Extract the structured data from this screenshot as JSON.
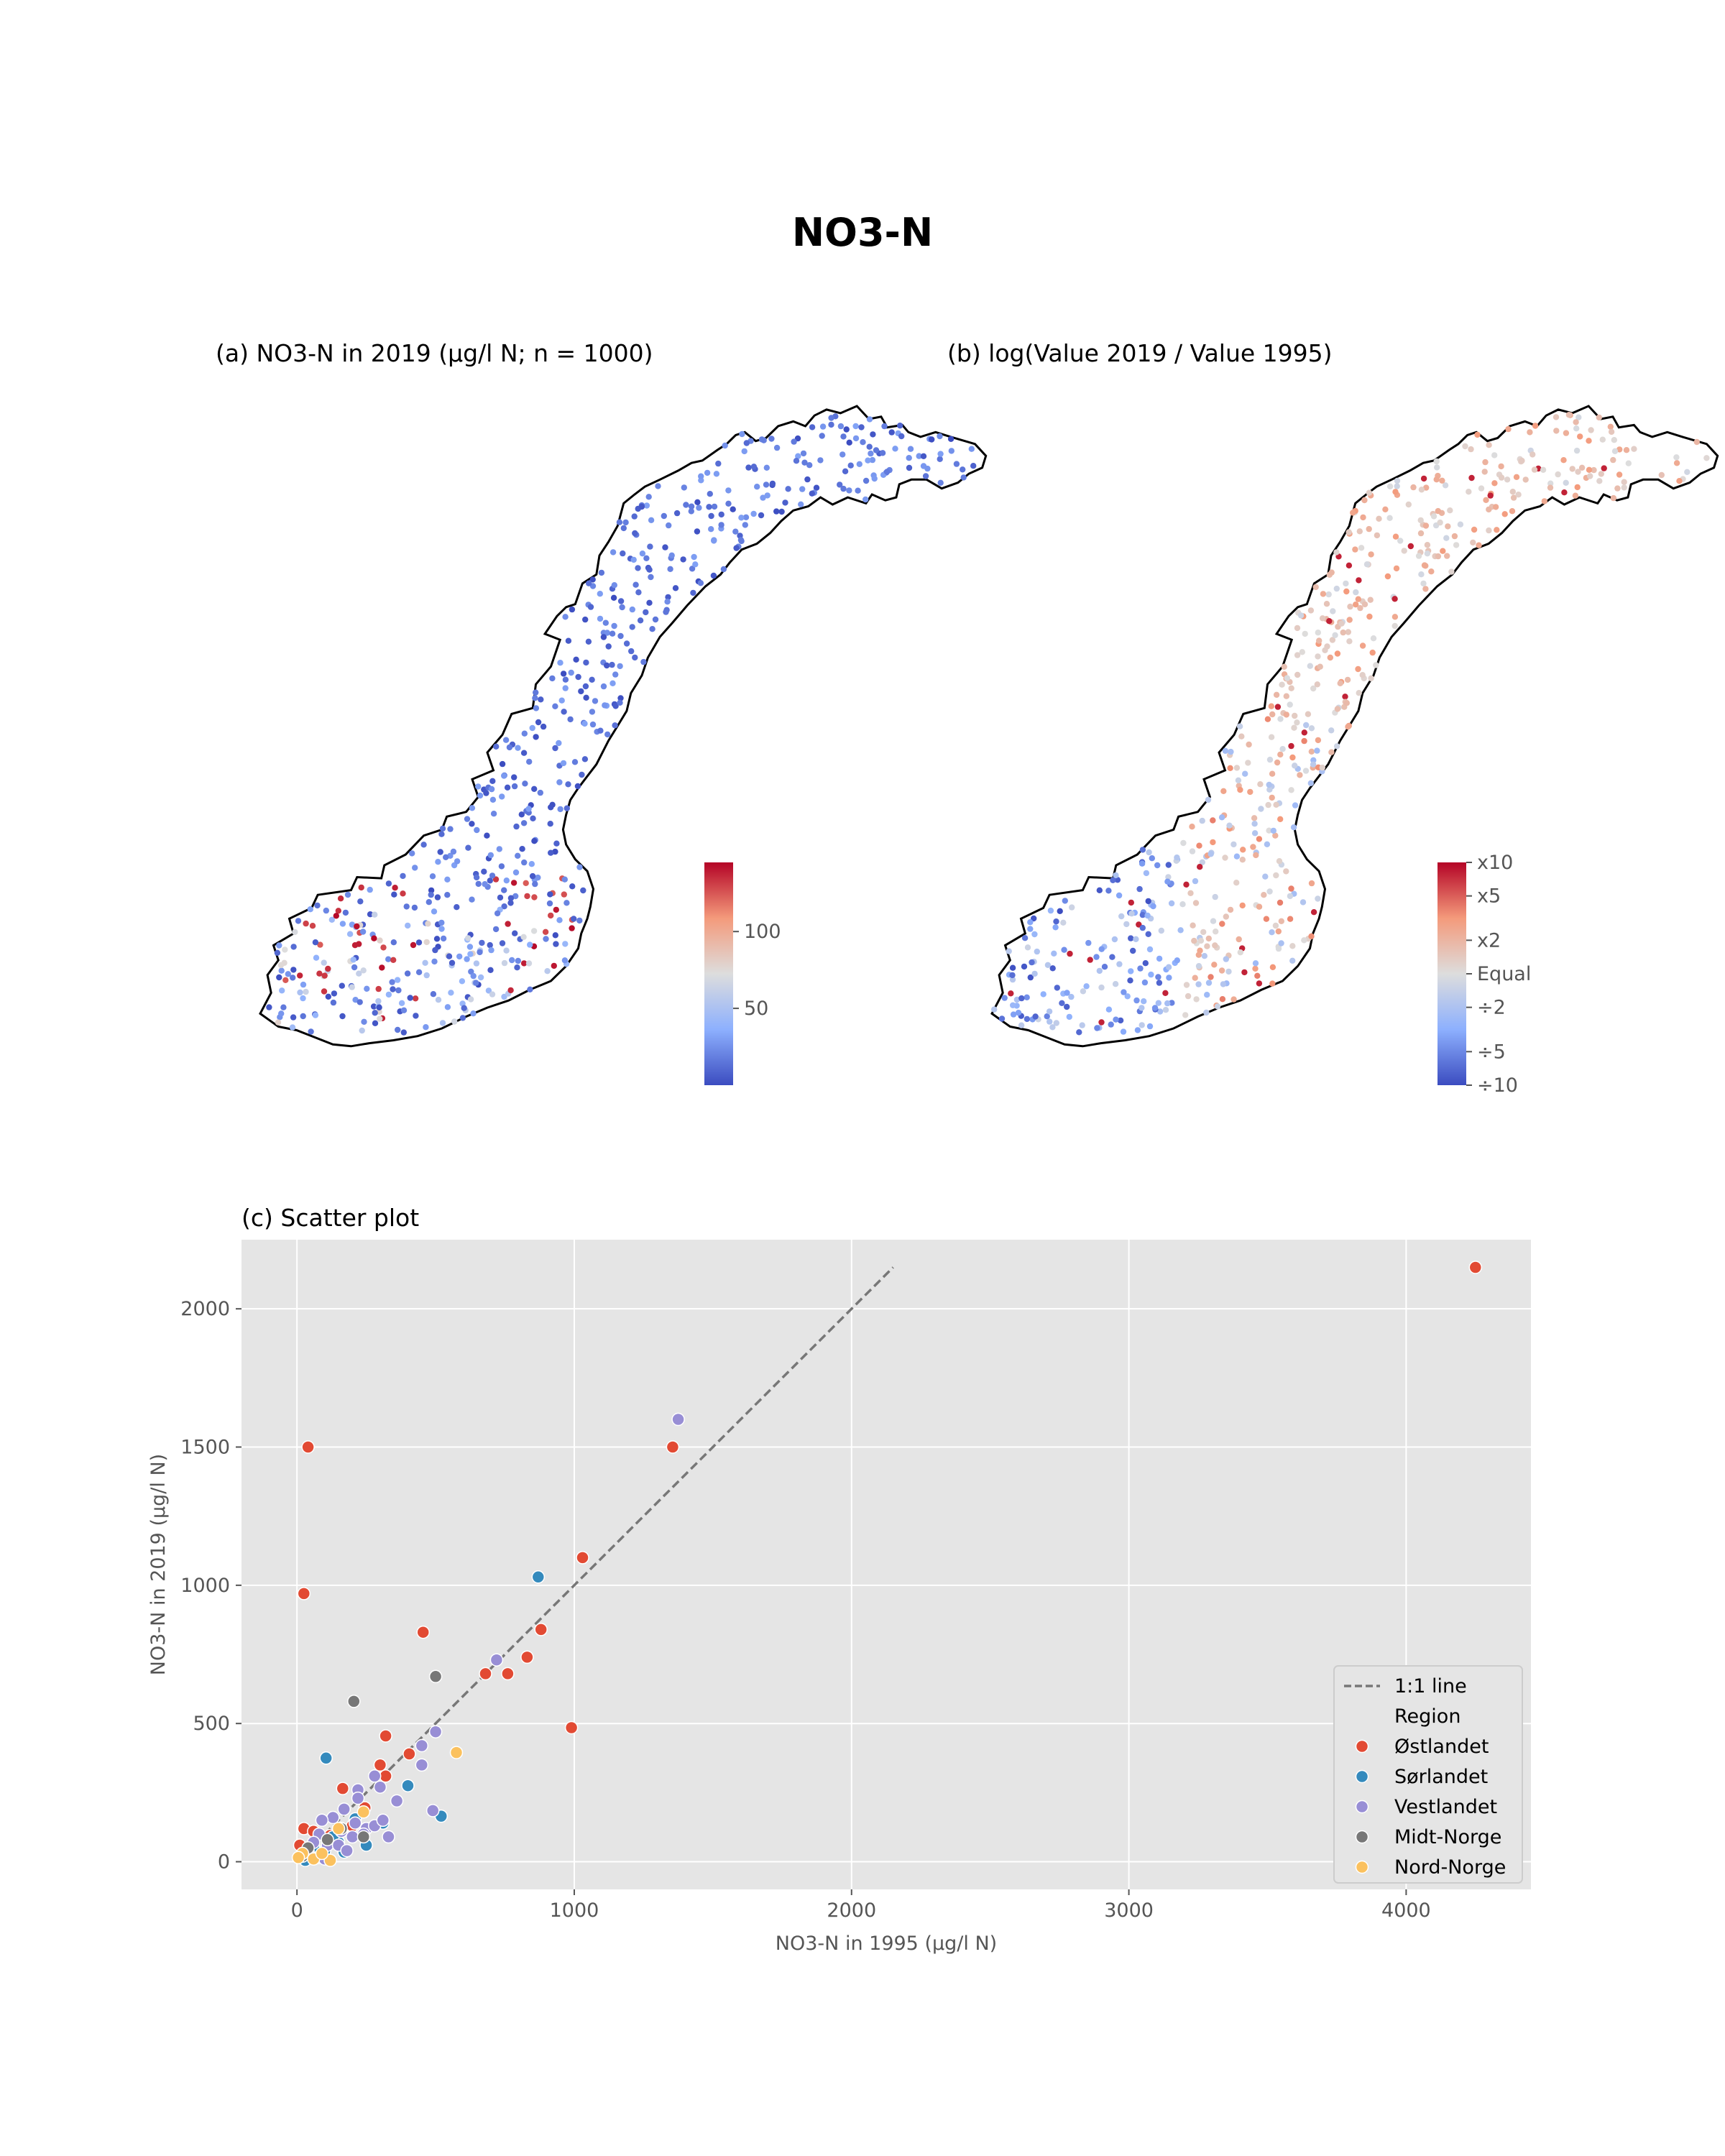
{
  "figure": {
    "title": "NO3-N"
  },
  "colors": {
    "ostlandet": "#e24a33",
    "sorlandet": "#348abd",
    "vestlandet": "#988ed5",
    "midt_norge": "#777777",
    "nord_norge": "#fbc15e",
    "cmap_low": "#3b4cc0",
    "cmap_mid": "#dddddd",
    "cmap_high": "#b40426",
    "plot_bg": "#e5e5e5",
    "grid": "#ffffff"
  },
  "chart_data": [
    {
      "panel": "a",
      "type": "scatter",
      "title": "(a) NO3-N in 2019 (µg/l N; n = 1000)",
      "map": "Norway",
      "colorbar": {
        "ticks": [
          "50",
          "100"
        ],
        "tick_values": [
          50,
          100
        ],
        "range": [
          0,
          145
        ],
        "cmap": "coolwarm"
      },
      "point_value_distribution": "mostly low (blue), high values (red) concentrated in the south-west and south-east coast",
      "n": 1000
    },
    {
      "panel": "b",
      "type": "scatter",
      "title": "(b) log(Value 2019 / Value 1995)",
      "map": "Norway",
      "colorbar": {
        "ticks": [
          "x10",
          "x5",
          "x2",
          "Equal",
          "÷2",
          "÷5",
          "÷10"
        ],
        "tick_values": [
          10,
          5,
          2,
          1,
          0.5,
          0.2,
          0.1
        ],
        "scale": "log",
        "cmap": "coolwarm"
      },
      "point_value_distribution": "decreases (blue) in the west, increases (red) in the east and north"
    },
    {
      "panel": "c",
      "type": "scatter",
      "title": "(c) Scatter plot",
      "xlabel": "NO3-N in 1995 (µg/l N)",
      "ylabel": "NO3-N in 2019 (µg/l N)",
      "xlim": [
        -200,
        4450
      ],
      "ylim": [
        -100,
        2250
      ],
      "xticks": [
        0,
        1000,
        2000,
        3000,
        4000
      ],
      "yticks": [
        0,
        500,
        1000,
        1500,
        2000
      ],
      "grid": true,
      "legend": {
        "position": "lower-right",
        "line_label": "1:1 line",
        "title": "Region"
      },
      "reference_line": {
        "label": "1:1 line",
        "x": [
          0,
          2150
        ],
        "y": [
          0,
          2150
        ],
        "style": "dashed"
      },
      "series": [
        {
          "name": "Østlandet",
          "color": "#e24a33",
          "points": [
            [
              4250,
              2150
            ],
            [
              40,
              1500
            ],
            [
              1355,
              1500
            ],
            [
              25,
              970
            ],
            [
              1030,
              1100
            ],
            [
              455,
              830
            ],
            [
              880,
              840
            ],
            [
              830,
              740
            ],
            [
              760,
              680
            ],
            [
              680,
              680
            ],
            [
              990,
              485
            ],
            [
              320,
              455
            ],
            [
              405,
              390
            ],
            [
              300,
              350
            ],
            [
              165,
              265
            ],
            [
              245,
              195
            ],
            [
              320,
              310
            ],
            [
              25,
              120
            ],
            [
              60,
              110
            ],
            [
              120,
              95
            ],
            [
              10,
              60
            ],
            [
              80,
              30
            ],
            [
              200,
              130
            ]
          ]
        },
        {
          "name": "Sørlandet",
          "color": "#348abd",
          "points": [
            [
              870,
              1030
            ],
            [
              105,
              375
            ],
            [
              400,
              275
            ],
            [
              520,
              165
            ],
            [
              310,
              140
            ],
            [
              210,
              155
            ],
            [
              150,
              70
            ],
            [
              100,
              40
            ],
            [
              60,
              50
            ],
            [
              30,
              5
            ],
            [
              130,
              90
            ],
            [
              170,
              35
            ],
            [
              75,
              15
            ],
            [
              250,
              60
            ]
          ]
        },
        {
          "name": "Vestlandet",
          "color": "#988ed5",
          "points": [
            [
              1375,
              1600
            ],
            [
              720,
              730
            ],
            [
              500,
              470
            ],
            [
              450,
              420
            ],
            [
              450,
              350
            ],
            [
              280,
              310
            ],
            [
              360,
              220
            ],
            [
              490,
              185
            ],
            [
              220,
              260
            ],
            [
              300,
              270
            ],
            [
              170,
              190
            ],
            [
              210,
              140
            ],
            [
              250,
              120
            ],
            [
              160,
              110
            ],
            [
              130,
              160
            ],
            [
              90,
              150
            ],
            [
              80,
              100
            ],
            [
              220,
              230
            ],
            [
              60,
              70
            ],
            [
              110,
              60
            ],
            [
              280,
              130
            ],
            [
              240,
              100
            ],
            [
              200,
              90
            ],
            [
              150,
              60
            ],
            [
              40,
              40
            ],
            [
              180,
              40
            ],
            [
              100,
              10
            ],
            [
              310,
              150
            ],
            [
              330,
              90
            ]
          ]
        },
        {
          "name": "Midt-Norge",
          "color": "#777777",
          "points": [
            [
              500,
              670
            ],
            [
              205,
              580
            ],
            [
              40,
              50
            ],
            [
              110,
              80
            ],
            [
              160,
              120
            ],
            [
              20,
              20
            ],
            [
              240,
              90
            ]
          ]
        },
        {
          "name": "Nord-Norge",
          "color": "#fbc15e",
          "points": [
            [
              575,
              395
            ],
            [
              60,
              10
            ],
            [
              120,
              5
            ],
            [
              20,
              30
            ],
            [
              5,
              15
            ],
            [
              240,
              180
            ],
            [
              150,
              120
            ],
            [
              90,
              30
            ]
          ]
        }
      ]
    }
  ]
}
